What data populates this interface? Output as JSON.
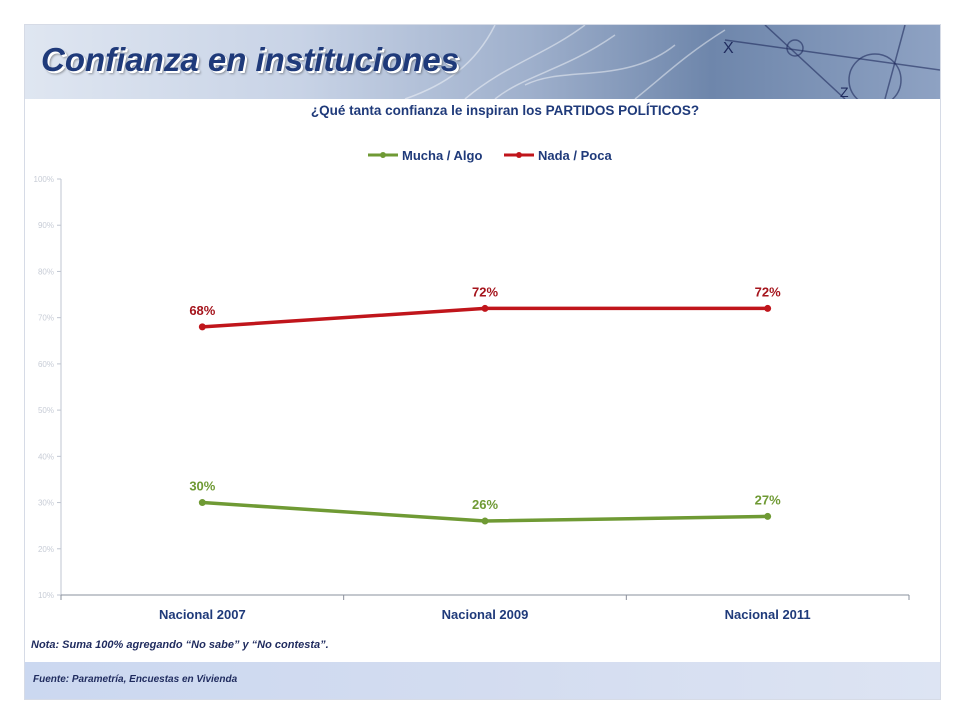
{
  "page": {
    "title": "Confianza en instituciones",
    "note": "Nota: Suma 100% agregando “No sabe” y “No contesta”.",
    "source": "Fuente: Parametría, Encuestas en Vivienda"
  },
  "chart_data": {
    "type": "line",
    "title": "¿Qué tanta confianza le inspiran los PARTIDOS POLÍTICOS?",
    "categories": [
      "Nacional 2007",
      "Nacional 2009",
      "Nacional 2011"
    ],
    "series": [
      {
        "name": "Mucha / Algo",
        "values": [
          30,
          26,
          27
        ],
        "labels": [
          "30%",
          "26%",
          "27%"
        ],
        "color": "#6f9a34",
        "label_color": "#6f9a34"
      },
      {
        "name": "Nada / Poca",
        "values": [
          68,
          72,
          72
        ],
        "labels": [
          "68%",
          "72%",
          "72%"
        ],
        "color": "#c0151b",
        "label_color": "#a5141c"
      }
    ],
    "y_ticks": [
      "10%",
      "20%",
      "30%",
      "40%",
      "50%",
      "60%",
      "70%",
      "80%",
      "90%",
      "100%"
    ],
    "ylim": [
      10,
      100
    ],
    "xlabel": "",
    "ylabel": "",
    "grid": false,
    "legend": "top-center"
  }
}
